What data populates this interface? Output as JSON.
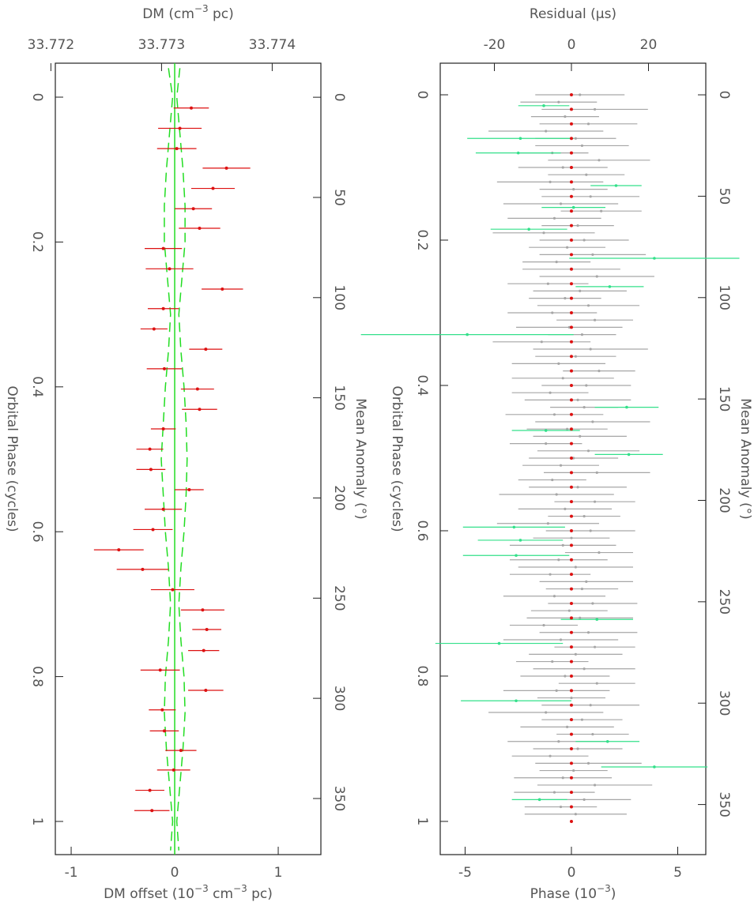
{
  "chart_data": [
    {
      "type": "scatter",
      "value_label": [
        "DM offset (10",
        "−3",
        " cm",
        "−3",
        " pc)"
      ],
      "value2_label": [
        "DM (cm",
        "−3",
        " pc)"
      ],
      "phase_label": [
        "Orbital Phase (cycles)"
      ],
      "phase2_label": [
        "Mean Anomaly (°)"
      ],
      "xlim": [
        -0.0469,
        1.0458
      ],
      "xticks": [
        0,
        0.2,
        0.4,
        0.6,
        0.8,
        1
      ],
      "x2lim": [
        -17,
        378
      ],
      "x2ticks": [
        0,
        50,
        100,
        150,
        200,
        250,
        300,
        350
      ],
      "ylim": [
        -1.153,
        1.412
      ],
      "yticks": [
        -1,
        0,
        1
      ],
      "y2lim": [
        33.77204,
        33.77444
      ],
      "y2ticks": [
        33.772,
        33.773,
        33.774
      ],
      "series": [
        {
          "color": "#22dd22",
          "style": "solid",
          "x": [
            -0.0469,
            1.0458
          ],
          "values": [
            0,
            0
          ]
        },
        {
          "color": "#22dd22",
          "style": "dashed",
          "x": [
            -0.04,
            0,
            0.05,
            0.1,
            0.15,
            0.2,
            0.25,
            0.3,
            0.35,
            0.4,
            0.45,
            0.5,
            0.55,
            0.6,
            0.65,
            0.7,
            0.75,
            0.8,
            0.85,
            0.9,
            0.95,
            1.0,
            1.04
          ],
          "values": [
            0.05,
            0.02,
            0.05,
            0.08,
            0.1,
            0.1,
            0.07,
            0.04,
            0.06,
            0.09,
            0.11,
            0.12,
            0.11,
            0.09,
            0.06,
            0.04,
            0.06,
            0.09,
            0.1,
            0.08,
            0.05,
            0.02,
            0.04
          ]
        },
        {
          "color": "#22dd22",
          "style": "dashed",
          "x": [
            -0.04,
            0,
            0.05,
            0.1,
            0.15,
            0.2,
            0.25,
            0.3,
            0.35,
            0.4,
            0.45,
            0.5,
            0.55,
            0.6,
            0.65,
            0.7,
            0.75,
            0.8,
            0.85,
            0.9,
            0.95,
            1.0,
            1.04
          ],
          "values": [
            -0.06,
            -0.02,
            -0.05,
            -0.08,
            -0.1,
            -0.1,
            -0.07,
            -0.04,
            -0.06,
            -0.09,
            -0.11,
            -0.13,
            -0.11,
            -0.09,
            -0.06,
            -0.04,
            -0.06,
            -0.09,
            -0.1,
            -0.08,
            -0.05,
            -0.02,
            -0.04
          ]
        },
        {
          "color": "#dd1111",
          "style": "points",
          "radius": 2,
          "x": [
            0.015,
            0.043,
            0.071,
            0.098,
            0.126,
            0.154,
            0.181,
            0.209,
            0.237,
            0.265,
            0.292,
            0.32,
            0.348,
            0.375,
            0.403,
            0.431,
            0.458,
            0.486,
            0.514,
            0.542,
            0.569,
            0.597,
            0.625,
            0.652,
            0.68,
            0.708,
            0.735,
            0.764,
            0.791,
            0.819,
            0.846,
            0.875,
            0.902,
            0.929,
            0.957,
            0.985
          ],
          "values": [
            0.16,
            0.05,
            0.02,
            0.5,
            0.37,
            0.18,
            0.24,
            -0.11,
            -0.05,
            0.46,
            -0.11,
            -0.2,
            0.3,
            -0.1,
            0.22,
            0.24,
            -0.11,
            -0.24,
            -0.23,
            0.14,
            -0.11,
            -0.21,
            -0.54,
            -0.31,
            -0.02,
            0.27,
            0.31,
            0.28,
            -0.14,
            0.3,
            -0.12,
            -0.1,
            0.06,
            -0.01,
            -0.24,
            -0.22
          ],
          "errors": [
            0.17,
            0.21,
            0.19,
            0.23,
            0.21,
            0.18,
            0.2,
            0.18,
            0.23,
            0.2,
            0.15,
            0.13,
            0.16,
            0.17,
            0.16,
            0.17,
            0.12,
            0.13,
            0.14,
            0.14,
            0.18,
            0.19,
            0.24,
            0.25,
            0.21,
            0.21,
            0.14,
            0.15,
            0.19,
            0.17,
            0.13,
            0.14,
            0.15,
            0.16,
            0.14,
            0.17
          ]
        }
      ]
    },
    {
      "type": "scatter",
      "value_label": [
        "Phase (10",
        "−3",
        ")"
      ],
      "value2_label": [
        "Residual (µs)"
      ],
      "phase_label": [
        "Orbital Phase (cycles)"
      ],
      "phase2_label": [
        "Mean Anomaly (°)"
      ],
      "xlim": [
        -0.0435,
        1.0457
      ],
      "xticks": [
        0,
        0.2,
        0.4,
        0.6,
        0.8,
        1
      ],
      "x2lim": [
        -15.6,
        374.7
      ],
      "x2ticks": [
        0,
        50,
        100,
        150,
        200,
        250,
        300,
        350
      ],
      "ylim": [
        -6.17,
        6.32
      ],
      "yticks": [
        -5,
        0,
        5
      ],
      "y2lim": [
        -34.05,
        34.87
      ],
      "y2ticks": [
        -20,
        0,
        20
      ],
      "series": [
        {
          "color": "#a6a6a6",
          "style": "points",
          "radius": 1.6,
          "x": [
            0.0,
            0.01,
            0.02,
            0.03,
            0.04,
            0.05,
            0.06,
            0.07,
            0.08,
            0.09,
            0.1,
            0.11,
            0.12,
            0.13,
            0.14,
            0.15,
            0.16,
            0.17,
            0.18,
            0.19,
            0.2,
            0.21,
            0.22,
            0.23,
            0.24,
            0.25,
            0.26,
            0.27,
            0.28,
            0.29,
            0.3,
            0.31,
            0.32,
            0.33,
            0.34,
            0.35,
            0.36,
            0.37,
            0.38,
            0.39,
            0.4,
            0.41,
            0.42,
            0.43,
            0.44,
            0.45,
            0.46,
            0.47,
            0.48,
            0.49,
            0.5,
            0.51,
            0.52,
            0.53,
            0.54,
            0.55,
            0.56,
            0.57,
            0.58,
            0.59,
            0.6,
            0.61,
            0.62,
            0.63,
            0.64,
            0.65,
            0.66,
            0.67,
            0.68,
            0.69,
            0.7,
            0.71,
            0.72,
            0.73,
            0.74,
            0.75,
            0.76,
            0.77,
            0.78,
            0.79,
            0.8,
            0.81,
            0.82,
            0.83,
            0.84,
            0.85,
            0.86,
            0.87,
            0.88,
            0.89,
            0.9,
            0.91,
            0.92,
            0.93,
            0.94,
            0.95,
            0.96,
            0.97,
            0.98,
            0.99
          ],
          "values": [
            0.4,
            -0.6,
            1.1,
            -0.3,
            0.8,
            -1.2,
            0.2,
            0.5,
            -0.9,
            1.3,
            -0.4,
            0.7,
            -1.0,
            0.1,
            0.9,
            -0.5,
            1.4,
            -0.8,
            0.3,
            -1.3,
            0.6,
            -0.2,
            1.0,
            -0.7,
            0.0,
            1.2,
            -1.1,
            0.4,
            -0.3,
            0.8,
            -0.9,
            1.1,
            -0.1,
            0.5,
            -1.4,
            0.9,
            0.2,
            -0.6,
            1.3,
            -0.4,
            0.7,
            -1.0,
            0.3,
            0.6,
            -0.8,
            1.0,
            -0.2,
            0.4,
            -1.2,
            0.8,
            0.1,
            -0.5,
            1.2,
            -0.9,
            0.3,
            -0.7,
            1.1,
            -0.3,
            0.6,
            -1.1,
            0.9,
            0.0,
            -0.4,
            1.3,
            -0.6,
            0.2,
            -1.0,
            0.7,
            0.5,
            -0.8,
            1.0,
            -0.1,
            0.4,
            -1.3,
            0.8,
            -0.5,
            1.1,
            0.2,
            -0.9,
            0.6,
            -0.3,
            1.2,
            -0.7,
            0.0,
            0.9,
            -1.2,
            0.5,
            -0.2,
            1.0,
            -0.6,
            0.3,
            -1.0,
            0.8,
            0.1,
            -0.4,
            1.1,
            -0.8,
            0.6,
            -0.5,
            0.2
          ],
          "errors": [
            2.1,
            1.8,
            2.5,
            1.6,
            2.3,
            2.7,
            1.9,
            2.2,
            1.7,
            2.4,
            2.1,
            1.8,
            2.5,
            1.6,
            2.3,
            2.7,
            1.9,
            2.2,
            1.7,
            2.4,
            2.1,
            1.8,
            2.5,
            1.6,
            2.3,
            2.7,
            1.9,
            2.2,
            1.7,
            2.4,
            2.1,
            1.8,
            2.5,
            1.6,
            2.3,
            2.7,
            1.9,
            2.2,
            1.7,
            2.4,
            2.1,
            1.8,
            2.5,
            1.6,
            2.3,
            2.7,
            1.9,
            2.2,
            1.7,
            2.4,
            2.1,
            1.8,
            2.5,
            1.6,
            2.3,
            2.7,
            1.9,
            2.2,
            1.7,
            2.4,
            2.1,
            1.8,
            2.5,
            1.6,
            2.3,
            2.7,
            1.9,
            2.2,
            1.7,
            2.4,
            2.1,
            1.8,
            2.5,
            1.6,
            2.3,
            2.7,
            1.9,
            2.2,
            1.7,
            2.4,
            2.1,
            1.8,
            2.5,
            1.6,
            2.3,
            2.7,
            1.9,
            2.2,
            1.7,
            2.4,
            2.1,
            1.8,
            2.5,
            1.6,
            2.3,
            2.7,
            1.9,
            2.2,
            1.7,
            2.4
          ]
        },
        {
          "color": "#33e08a",
          "style": "points",
          "radius": 1.8,
          "x": [
            0.015,
            0.06,
            0.08,
            0.125,
            0.155,
            0.185,
            0.225,
            0.264,
            0.33,
            0.43,
            0.462,
            0.495,
            0.595,
            0.613,
            0.634,
            0.722,
            0.755,
            0.834,
            0.89,
            0.925,
            0.97
          ],
          "values": [
            -1.3,
            -2.4,
            -2.5,
            2.1,
            0.1,
            -2.0,
            3.9,
            1.8,
            -4.9,
            2.6,
            -1.2,
            2.7,
            -2.7,
            -2.4,
            -2.6,
            1.2,
            -3.4,
            -2.6,
            1.7,
            3.9,
            -1.5
          ],
          "errors": [
            1.2,
            2.5,
            2.0,
            1.2,
            1.5,
            1.8,
            4.0,
            1.6,
            5.0,
            1.5,
            1.6,
            1.6,
            2.4,
            2.0,
            2.5,
            1.7,
            3.0,
            2.6,
            1.5,
            2.5,
            1.3
          ]
        },
        {
          "color": "#dd1111",
          "style": "points",
          "radius": 2,
          "x": [
            0,
            0.02,
            0.04,
            0.06,
            0.08,
            0.1,
            0.12,
            0.14,
            0.16,
            0.18,
            0.2,
            0.22,
            0.24,
            0.26,
            0.28,
            0.3,
            0.32,
            0.34,
            0.36,
            0.38,
            0.4,
            0.42,
            0.44,
            0.46,
            0.48,
            0.5,
            0.52,
            0.54,
            0.56,
            0.58,
            0.6,
            0.62,
            0.64,
            0.66,
            0.68,
            0.7,
            0.72,
            0.74,
            0.76,
            0.78,
            0.8,
            0.82,
            0.84,
            0.86,
            0.88,
            0.9,
            0.92,
            0.94,
            0.96,
            0.98,
            1.0
          ],
          "values": [
            0,
            0,
            0,
            0,
            0,
            0,
            0,
            0,
            0,
            0,
            0,
            0,
            0,
            0,
            0,
            0,
            0,
            0,
            0,
            0,
            0,
            0,
            0,
            0,
            0,
            0,
            0,
            0,
            0,
            0,
            0,
            0,
            0,
            0,
            0,
            0,
            0,
            0,
            0,
            0,
            0,
            0,
            0,
            0,
            0,
            0,
            0,
            0,
            0,
            0,
            0
          ]
        }
      ]
    }
  ]
}
